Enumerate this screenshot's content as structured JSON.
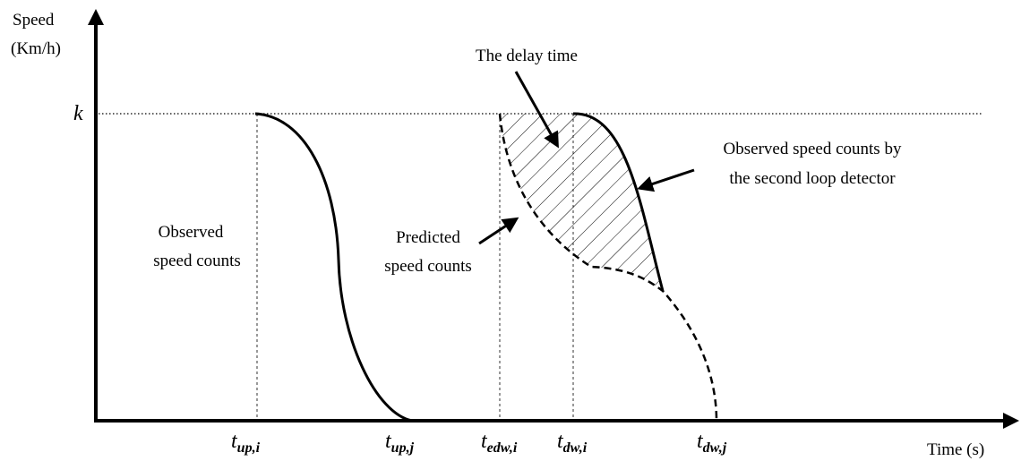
{
  "axes": {
    "y_label_line1": "Speed",
    "y_label_line2": "(Km/h)",
    "level_label": "k",
    "x_label": "Time (s)"
  },
  "ticks": [
    {
      "main": "t",
      "sub": "up,i"
    },
    {
      "main": "t",
      "sub": "up,j"
    },
    {
      "main": "t",
      "sub": "edw,i"
    },
    {
      "main": "t",
      "sub": "dw,i"
    },
    {
      "main": "t",
      "sub": "dw,j"
    }
  ],
  "annotations": {
    "delay": "The delay time",
    "second_line1": "Observed speed counts by",
    "second_line2": "the second loop detector",
    "observed_line1": "Observed",
    "observed_line2": "speed counts",
    "predicted_line1": "Predicted",
    "predicted_line2": "speed counts"
  }
}
